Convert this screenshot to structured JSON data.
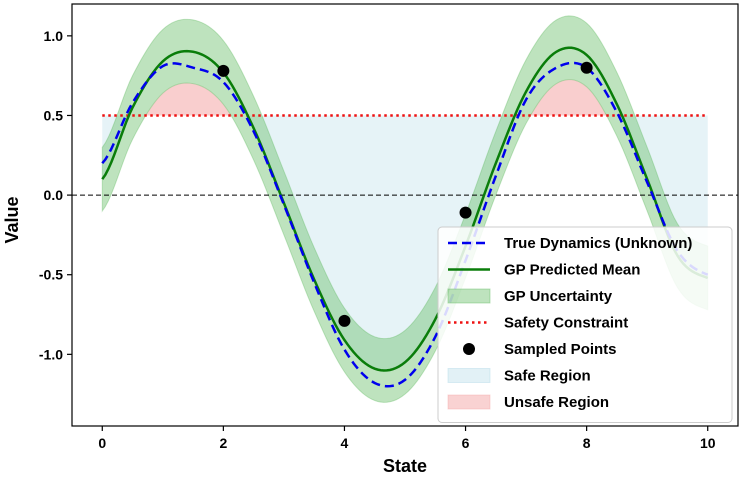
{
  "chart_data": {
    "type": "line",
    "title": "",
    "xlabel": "State",
    "ylabel": "Value",
    "xlim": [
      -0.5,
      10.5
    ],
    "ylim": [
      -1.45,
      1.2
    ],
    "xticks": [
      0,
      2,
      4,
      6,
      8,
      10
    ],
    "xtick_labels": [
      "0",
      "2",
      "4",
      "6",
      "8",
      "10"
    ],
    "yticks": [
      -1.0,
      -0.5,
      0.0,
      0.5,
      1.0
    ],
    "ytick_labels": [
      "-1.0",
      "-0.5",
      "0.0",
      "0.5",
      "1.0"
    ],
    "grid": false,
    "legend_position": "lower-right",
    "series": [
      {
        "name": "True Dynamics (Unknown)",
        "style": "dashed",
        "color": "#0000ee",
        "function": "sin(x) * 1.0 - 0.2 offset-form",
        "x": [
          0,
          0.5,
          1,
          1.5,
          2,
          2.5,
          3,
          3.5,
          4,
          4.5,
          5,
          5.5,
          6,
          6.5,
          7,
          7.5,
          8,
          8.5,
          9,
          9.5,
          10
        ],
        "values": [
          0.2,
          0.58,
          0.81,
          0.8,
          0.71,
          0.4,
          -0.06,
          -0.55,
          -0.97,
          -1.18,
          -1.16,
          -0.89,
          -0.41,
          0.12,
          0.6,
          0.8,
          0.8,
          0.52,
          0.08,
          -0.35,
          -0.5
        ]
      },
      {
        "name": "GP Predicted Mean",
        "style": "solid",
        "color": "#0a7d0a",
        "x": [
          0,
          0.5,
          1,
          1.5,
          2,
          2.5,
          3,
          3.5,
          4,
          4.5,
          5,
          5.5,
          6,
          6.5,
          7,
          7.5,
          8,
          8.5,
          9,
          9.5,
          10
        ],
        "values": [
          0.1,
          0.55,
          0.84,
          0.9,
          0.77,
          0.42,
          -0.05,
          -0.53,
          -0.91,
          -1.09,
          -1.05,
          -0.78,
          -0.32,
          0.2,
          0.65,
          0.9,
          0.88,
          0.57,
          0.1,
          -0.38,
          -0.52
        ]
      },
      {
        "name": "Safety Constraint",
        "style": "dotted",
        "color": "#ee1111",
        "x": [
          0,
          10
        ],
        "values": [
          0.5,
          0.5
        ]
      }
    ],
    "uncertainty_band": {
      "name": "GP Uncertainty",
      "color": "#5cb85c",
      "half_width": 0.2
    },
    "sampled_points": {
      "name": "Sampled Points",
      "color": "#000000",
      "x": [
        2,
        4,
        6,
        8
      ],
      "y": [
        0.78,
        -0.79,
        -0.11,
        0.8
      ]
    },
    "safe_region": {
      "name": "Safe Region",
      "color": "#add8e6",
      "below": 0.5
    },
    "unsafe_region": {
      "name": "Unsafe Region",
      "color": "#f4a6a6",
      "above": 0.5
    },
    "zero_line": {
      "y": 0,
      "style": "dashed",
      "color": "#000000"
    },
    "legend": [
      {
        "label": "True Dynamics (Unknown)",
        "kind": "dashed-line",
        "color": "#0000ee"
      },
      {
        "label": "GP Predicted Mean",
        "kind": "line",
        "color": "#0a7d0a"
      },
      {
        "label": "GP Uncertainty",
        "kind": "patch",
        "color": "#5cb85c"
      },
      {
        "label": "Safety Constraint",
        "kind": "dotted-line",
        "color": "#ee1111"
      },
      {
        "label": "Sampled Points",
        "kind": "marker",
        "color": "#000000"
      },
      {
        "label": "Safe Region",
        "kind": "patch",
        "color": "#add8e6"
      },
      {
        "label": "Unsafe Region",
        "kind": "patch",
        "color": "#f4a6a6"
      }
    ]
  }
}
